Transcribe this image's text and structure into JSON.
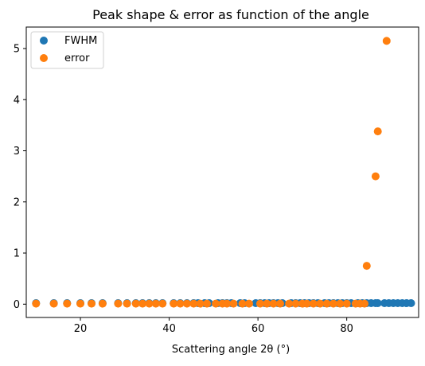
{
  "chart_data": {
    "type": "scatter",
    "title": "Peak shape & error as function of the angle",
    "xlabel": "Scattering angle 2θ (°)",
    "ylabel": "",
    "xlim": [
      7.8,
      96.2
    ],
    "ylim": [
      -0.26,
      5.42
    ],
    "xticks": [
      20,
      40,
      60,
      80
    ],
    "yticks": [
      0,
      1,
      2,
      3,
      4,
      5
    ],
    "grid": false,
    "legend_position": "top-left",
    "series": [
      {
        "name": "FWHM",
        "color": "#1f77b4",
        "x": [
          10,
          14,
          17,
          20,
          22.5,
          25,
          28.5,
          30.5,
          32.5,
          34,
          35.5,
          37,
          38.5,
          41,
          42.5,
          44,
          45.5,
          46.5,
          48,
          49,
          51,
          52,
          53,
          54,
          56,
          57,
          59.5,
          60.5,
          61.5,
          62.5,
          63.5,
          64.5,
          65.5,
          67.5,
          68.5,
          69.5,
          70.5,
          71.5,
          72.5,
          73.5,
          75,
          76,
          77,
          78,
          79,
          80,
          81,
          82.5,
          83.5,
          84.5,
          85.5,
          86.5,
          87,
          88.5,
          89.5,
          90.5,
          91.5,
          92.5,
          93.5,
          94.5
        ],
        "y": [
          0.02,
          0.02,
          0.02,
          0.02,
          0.02,
          0.02,
          0.02,
          0.02,
          0.02,
          0.02,
          0.02,
          0.02,
          0.02,
          0.02,
          0.02,
          0.02,
          0.02,
          0.02,
          0.02,
          0.02,
          0.02,
          0.02,
          0.02,
          0.02,
          0.02,
          0.02,
          0.02,
          0.02,
          0.02,
          0.02,
          0.02,
          0.02,
          0.02,
          0.02,
          0.02,
          0.02,
          0.02,
          0.02,
          0.02,
          0.02,
          0.02,
          0.02,
          0.02,
          0.02,
          0.02,
          0.02,
          0.02,
          0.02,
          0.02,
          0.02,
          0.02,
          0.02,
          0.02,
          0.02,
          0.02,
          0.02,
          0.02,
          0.02,
          0.02,
          0.02
        ]
      },
      {
        "name": "error",
        "color": "#ff7f0e",
        "x": [
          10,
          14,
          17,
          20,
          22.5,
          25,
          28.5,
          30.5,
          32.5,
          34,
          35.5,
          37,
          38.5,
          41,
          42.5,
          44,
          45.5,
          47,
          48.5,
          50.5,
          52,
          53,
          54.5,
          56.5,
          58,
          60.5,
          62,
          63.5,
          65,
          67,
          68.5,
          70,
          71,
          72.5,
          74,
          75.5,
          77,
          78.5,
          80,
          82,
          83,
          84,
          84.5,
          86.5,
          87,
          89
        ],
        "y": [
          0.01,
          0.01,
          0.01,
          0.01,
          0.01,
          0.01,
          0.01,
          0.01,
          0.01,
          0.01,
          0.01,
          0.01,
          0.01,
          0.01,
          0.01,
          0.01,
          0.01,
          0.01,
          0.01,
          0.01,
          0.01,
          0.01,
          0.01,
          0.01,
          0.01,
          0.01,
          0.01,
          0.01,
          0.01,
          0.01,
          0.01,
          0.01,
          0.01,
          0.01,
          0.01,
          0.01,
          0.01,
          0.01,
          0.01,
          0.01,
          0.01,
          0.01,
          0.75,
          2.5,
          3.38,
          5.15
        ]
      }
    ]
  }
}
